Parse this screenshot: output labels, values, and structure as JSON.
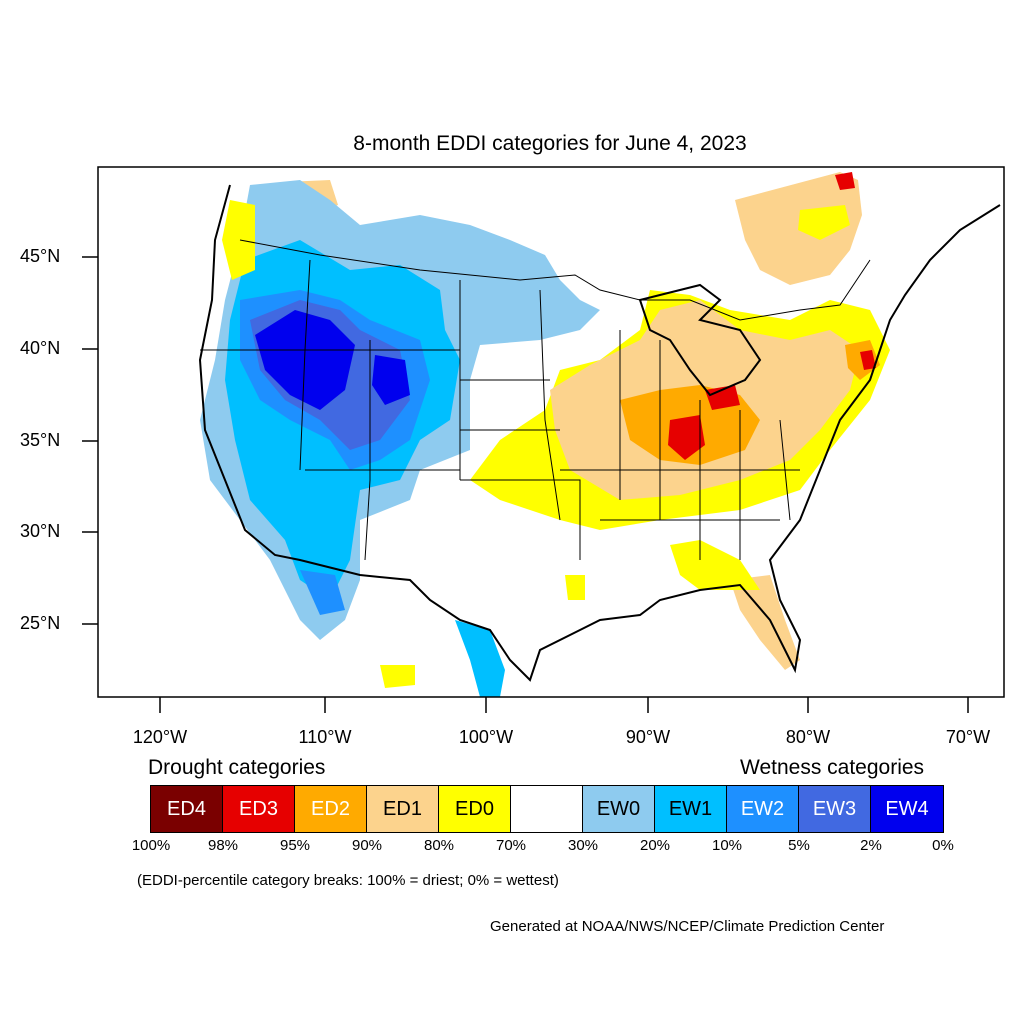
{
  "title": "8-month EDDI categories for June 4, 2023",
  "lat_labels": [
    "45°N",
    "40°N",
    "35°N",
    "30°N",
    "25°N"
  ],
  "lon_labels": [
    "120°W",
    "110°W",
    "100°W",
    "90°W",
    "80°W",
    "70°W"
  ],
  "legend": {
    "drought_heading": "Drought categories",
    "wetness_heading": "Wetness categories",
    "categories": [
      {
        "label": "ED4",
        "color": "#7a0000",
        "text_color": "#ffffff"
      },
      {
        "label": "ED3",
        "color": "#e60000",
        "text_color": "#ffffff"
      },
      {
        "label": "ED2",
        "color": "#ffaa00",
        "text_color": "#ffffff"
      },
      {
        "label": "ED1",
        "color": "#fcd38d",
        "text_color": "#000000"
      },
      {
        "label": "ED0",
        "color": "#ffff00",
        "text_color": "#000000"
      },
      {
        "label": "",
        "color": "#ffffff",
        "text_color": "#000000"
      },
      {
        "label": "EW0",
        "color": "#8ecbef",
        "text_color": "#000000"
      },
      {
        "label": "EW1",
        "color": "#00bfff",
        "text_color": "#000000"
      },
      {
        "label": "EW2",
        "color": "#1e90ff",
        "text_color": "#ffffff"
      },
      {
        "label": "EW3",
        "color": "#4169e1",
        "text_color": "#ffffff"
      },
      {
        "label": "EW4",
        "color": "#0000ee",
        "text_color": "#ffffff"
      }
    ],
    "breaks": [
      "100%",
      "98%",
      "95%",
      "90%",
      "80%",
      "70%",
      "30%",
      "20%",
      "10%",
      "5%",
      "2%",
      "0%"
    ]
  },
  "note": "(EDDI-percentile category breaks: 100% = driest; 0% = wettest)",
  "credit": "Generated at NOAA/NWS/NCEP/Climate Prediction Center"
}
